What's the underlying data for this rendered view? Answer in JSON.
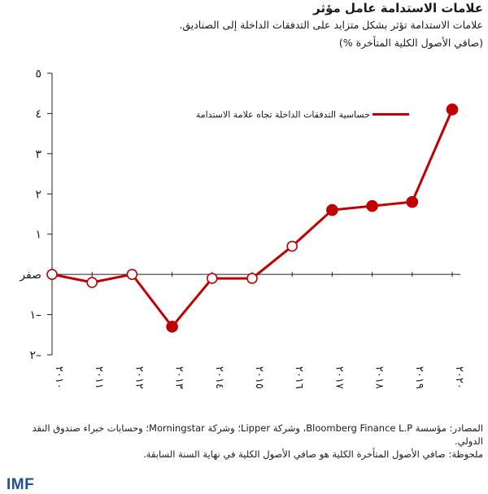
{
  "header": {
    "title": "علامات الاستدامة عامل مؤثر",
    "subtitle": "علامات الاستدامة تؤثر بشكل متزايد على التدفقات الداخلة إلى الصناديق.",
    "unit": "(صافي الأصول الكلية المتأخرة %)"
  },
  "chart_data": {
    "type": "line",
    "x": [
      "٢٠١٠",
      "٢٠١١",
      "٢٠١٢",
      "٢٠١٣",
      "٢٠١٤",
      "٢٠١٥",
      "٢٠١٦",
      "٢٠١٧",
      "٢٠١٨",
      "٢٠١٩",
      "٢٠٢٠"
    ],
    "series": [
      {
        "name": "حساسية التدفقات الداخلة تجاه علامة الاستدامة",
        "values": [
          0,
          -0.2,
          0,
          -1.3,
          -0.1,
          -0.1,
          0.7,
          1.6,
          1.7,
          1.8,
          4.1
        ],
        "markers": [
          "hollow",
          "hollow",
          "hollow",
          "filled",
          "hollow",
          "hollow",
          "hollow",
          "filled",
          "filled",
          "filled",
          "filled"
        ],
        "color": "#c00000"
      }
    ],
    "yticks": [
      {
        "value": 5,
        "label": "٥"
      },
      {
        "value": 4,
        "label": "٤"
      },
      {
        "value": 3,
        "label": "٣"
      },
      {
        "value": 2,
        "label": "٢"
      },
      {
        "value": 1,
        "label": "١"
      },
      {
        "value": 0,
        "label": "صفر"
      },
      {
        "value": -1,
        "label": "١–"
      },
      {
        "value": -2,
        "label": "٢–"
      }
    ],
    "ylim": [
      -2,
      5
    ],
    "legend_position": "top-left",
    "grid": false
  },
  "footer": {
    "sources": "المصادر: مؤسسة Bloomberg Finance L.P، وشركة Lipper؛ وشركة Morningstar؛ وحسابات خبراء صندوق النقد الدولي.",
    "note": "ملحوظة: صافي الأصول المتأخرة الكلية هو صافي الأصول الكلية في نهاية السنة السابقة.",
    "logo": "IMF"
  }
}
